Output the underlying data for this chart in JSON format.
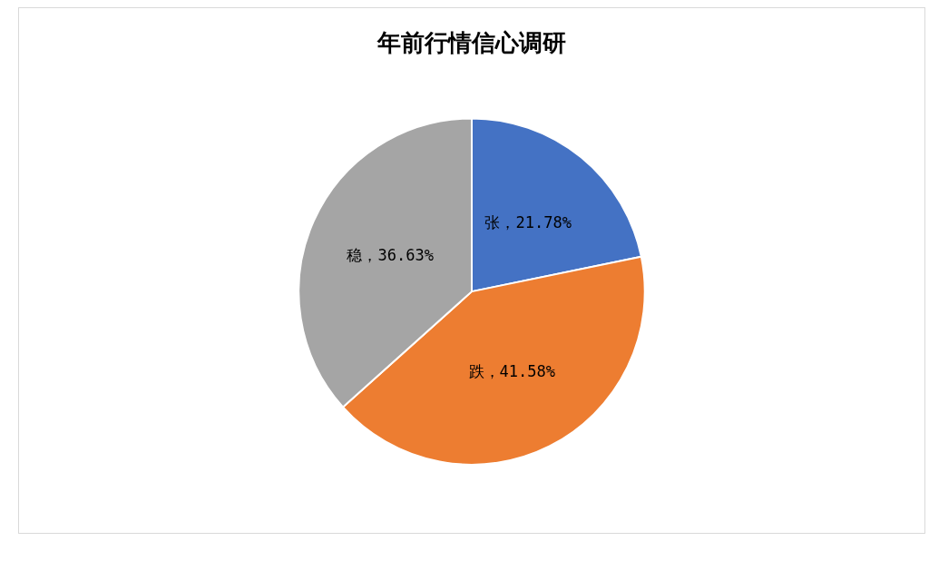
{
  "chart_data": {
    "type": "pie",
    "title": "年前行情信心调研",
    "categories": [
      "张",
      "跌",
      "稳"
    ],
    "values": [
      21.78,
      41.58,
      36.63
    ],
    "colors": [
      "#4472c4",
      "#ed7d31",
      "#a5a5a5"
    ],
    "value_labels": [
      "，21.78%",
      "，41.58%",
      "，36.63%"
    ],
    "legend": false
  }
}
